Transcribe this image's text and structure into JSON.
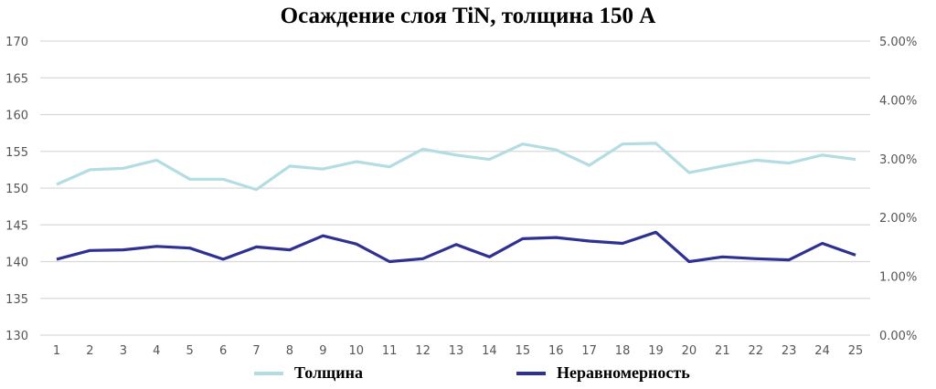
{
  "chart_data": {
    "type": "line",
    "title": "Осаждение слоя TiN, толщина 150 А",
    "xlabel": "",
    "ylabel": "",
    "categories": [
      "1",
      "2",
      "3",
      "4",
      "5",
      "6",
      "7",
      "8",
      "9",
      "10",
      "11",
      "12",
      "13",
      "14",
      "15",
      "16",
      "17",
      "18",
      "19",
      "20",
      "21",
      "22",
      "23",
      "24",
      "25"
    ],
    "y_left": {
      "min": 130,
      "max": 170,
      "step": 5,
      "ticks": [
        "130",
        "135",
        "140",
        "145",
        "150",
        "155",
        "160",
        "165",
        "170"
      ]
    },
    "y_right": {
      "min": 0,
      "max": 5,
      "step": 1,
      "ticks": [
        "0.00%",
        "1.00%",
        "2.00%",
        "3.00%",
        "4.00%",
        "5.00%"
      ]
    },
    "grid": true,
    "legend_position": "bottom",
    "series": [
      {
        "name": "Толщина",
        "axis": "left",
        "color": "#b4dde3",
        "values": [
          150.5,
          152.5,
          152.7,
          153.8,
          151.2,
          151.2,
          149.8,
          153.0,
          152.6,
          153.6,
          152.9,
          155.3,
          154.5,
          153.9,
          156.0,
          155.2,
          153.1,
          156.0,
          156.1,
          152.1,
          153.0,
          153.8,
          153.4,
          154.5,
          153.9
        ]
      },
      {
        "name": "Неравномерность",
        "axis": "right",
        "color": "#2e3192",
        "values": [
          1.29,
          1.44,
          1.45,
          1.51,
          1.48,
          1.29,
          1.5,
          1.45,
          1.69,
          1.55,
          1.25,
          1.3,
          1.54,
          1.33,
          1.64,
          1.66,
          1.6,
          1.56,
          1.75,
          1.25,
          1.33,
          1.3,
          1.28,
          1.56,
          1.36
        ]
      }
    ]
  },
  "legend": {
    "items": [
      {
        "label": "Толщина",
        "color": "#b4dde3"
      },
      {
        "label": "Неравномерность",
        "color": "#2e3192"
      }
    ]
  }
}
